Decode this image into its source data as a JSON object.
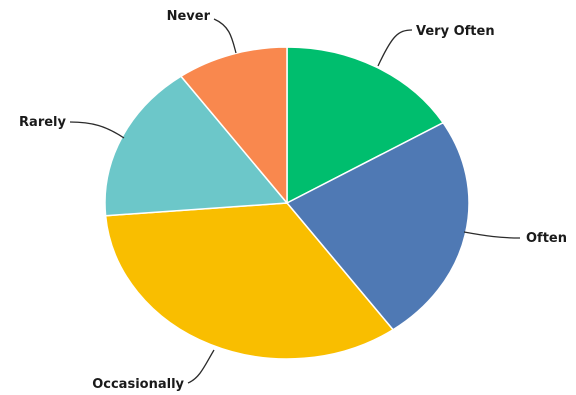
{
  "chart_data": {
    "type": "pie",
    "title": "",
    "slices": [
      {
        "label": "Very Often",
        "value": 16.4,
        "color": "#00BE6E"
      },
      {
        "label": "Often",
        "value": 23.7,
        "color": "#4F79B4"
      },
      {
        "label": "Occasionally",
        "value": 33.6,
        "color": "#F9BE00"
      },
      {
        "label": "Rarely",
        "value": 16.4,
        "color": "#6CC7C9"
      },
      {
        "label": "Never",
        "value": 9.9,
        "color": "#F9884E"
      }
    ],
    "legend": "none"
  }
}
